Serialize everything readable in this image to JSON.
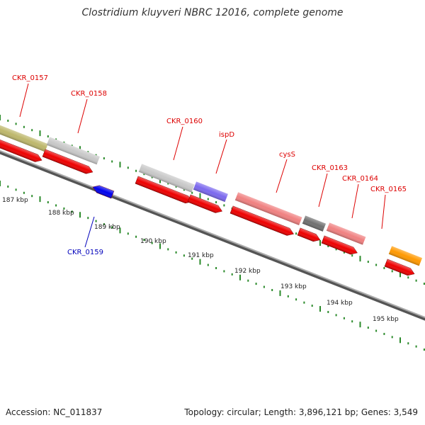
{
  "title": "Clostridium kluyveri NBRC 12016, complete genome",
  "accession": "Accession: NC_011837",
  "topology": "Topology: circular; Length: 3,896,121 bp; Genes: 3,549",
  "colors": {
    "gene_label": "#dd0000",
    "minus_label": "#0000bb",
    "cds_forward": "#ee0000",
    "cds_reverse": "#0000ee",
    "tick": "#2a8a2a",
    "axis": "#888888"
  },
  "kbp_ticks": [
    "187 kbp",
    "188 kbp",
    "189 kbp",
    "190 kbp",
    "191 kbp",
    "192 kbp",
    "193 kbp",
    "194 kbp",
    "195 kbp"
  ],
  "genes": [
    {
      "name": "CKR_0157",
      "strand": "+",
      "color": "#bdb76b"
    },
    {
      "name": "CKR_0158",
      "strand": "+",
      "color": "#c8c8c8"
    },
    {
      "name": "CKR_0159",
      "strand": "-",
      "color": "#0000ee"
    },
    {
      "name": "CKR_0160",
      "strand": "+",
      "color": "#c8c8c8"
    },
    {
      "name": "ispD",
      "strand": "+",
      "color": "#7b68ee"
    },
    {
      "name": "cysS",
      "strand": "+",
      "color": "#f08080"
    },
    {
      "name": "CKR_0163",
      "strand": "+",
      "color": "#707070"
    },
    {
      "name": "CKR_0164",
      "strand": "+",
      "color": "#f08080"
    },
    {
      "name": "CKR_0165",
      "strand": "+",
      "color": "#ff9900"
    }
  ]
}
